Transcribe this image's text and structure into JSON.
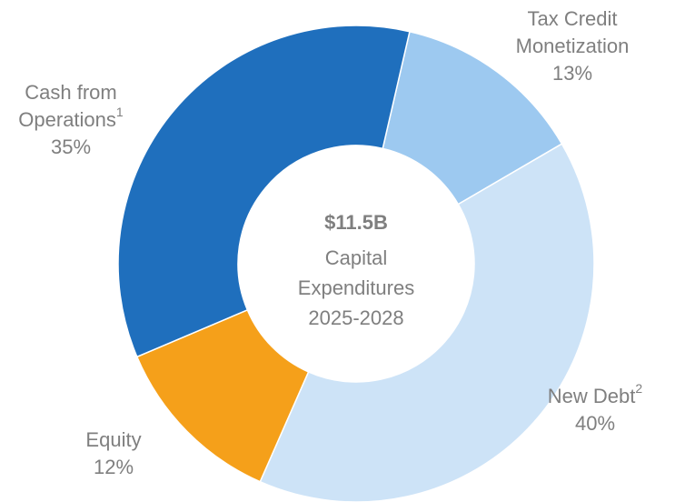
{
  "chart_data": {
    "type": "donut",
    "categories": [
      [
        "Tax Credit",
        "Monetization"
      ],
      [
        "New Debt"
      ],
      [
        "Equity"
      ],
      [
        "Cash from",
        "Operations"
      ]
    ],
    "superscripts": [
      null,
      "2",
      null,
      "1"
    ],
    "values": [
      13,
      40,
      12,
      35
    ],
    "value_labels": [
      "13%",
      "40%",
      "12%",
      "35%"
    ],
    "colors": [
      "#9dc9f0",
      "#cde3f7",
      "#f5a01a",
      "#1f6fbd"
    ],
    "center_title": "$11.5B",
    "center_lines": [
      "Capital",
      "Expenditures",
      "2025-2028"
    ]
  }
}
